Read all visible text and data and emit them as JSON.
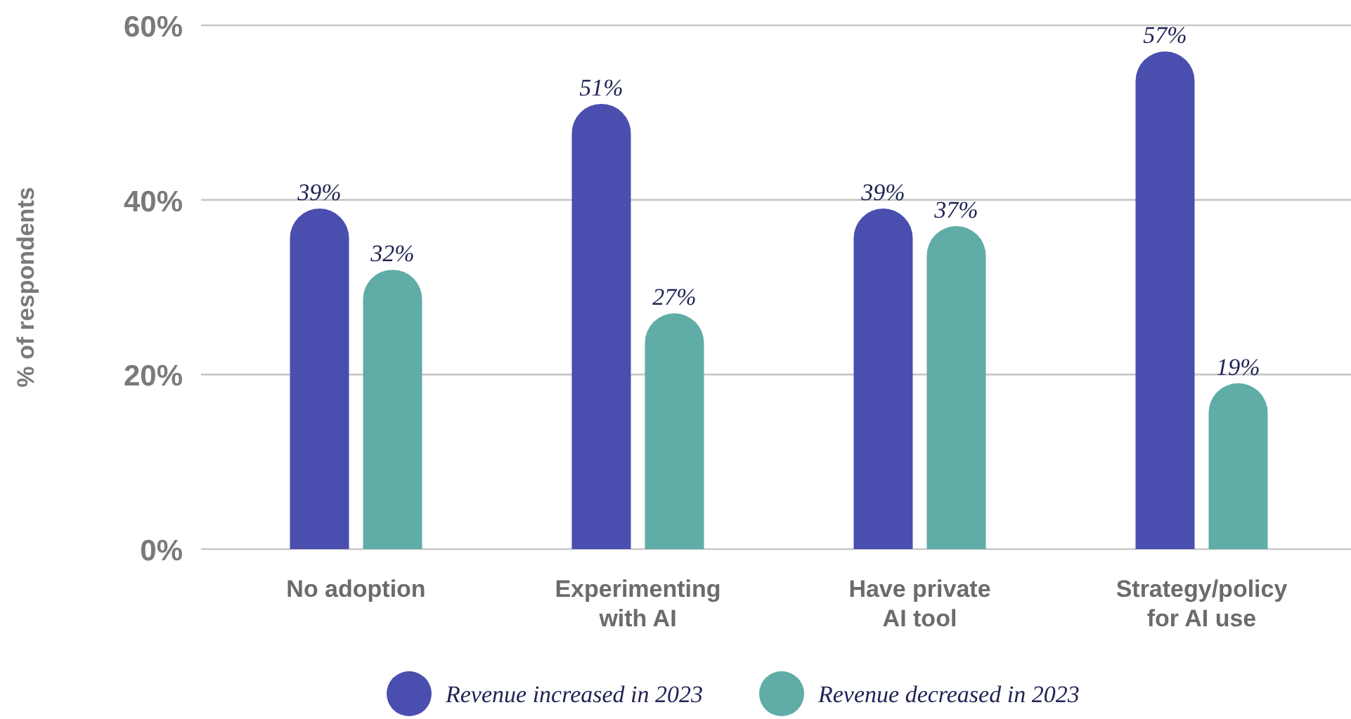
{
  "chart_data": {
    "type": "bar",
    "ylabel": "% of respondents",
    "categories": [
      "No adoption",
      "Experimenting\nwith AI",
      "Have private\nAI tool",
      "Strategy/policy\nfor AI use"
    ],
    "series": [
      {
        "name": "Revenue increased in 2023",
        "color": "#4a4eae",
        "values": [
          39,
          51,
          39,
          57
        ],
        "value_labels": [
          "39%",
          "51%",
          "39%",
          "57%"
        ]
      },
      {
        "name": "Revenue decreased in 2023",
        "color": "#60aca6",
        "values": [
          32,
          27,
          37,
          19
        ],
        "value_labels": [
          "32%",
          "27%",
          "37%",
          "19%"
        ]
      }
    ],
    "ylim": [
      0,
      60
    ],
    "yticks": [
      {
        "value": 0,
        "label": "0%"
      },
      {
        "value": 20,
        "label": "20%"
      },
      {
        "value": 40,
        "label": "40%"
      },
      {
        "value": 60,
        "label": "60%"
      }
    ],
    "grid": "y",
    "legend": "bottom"
  }
}
